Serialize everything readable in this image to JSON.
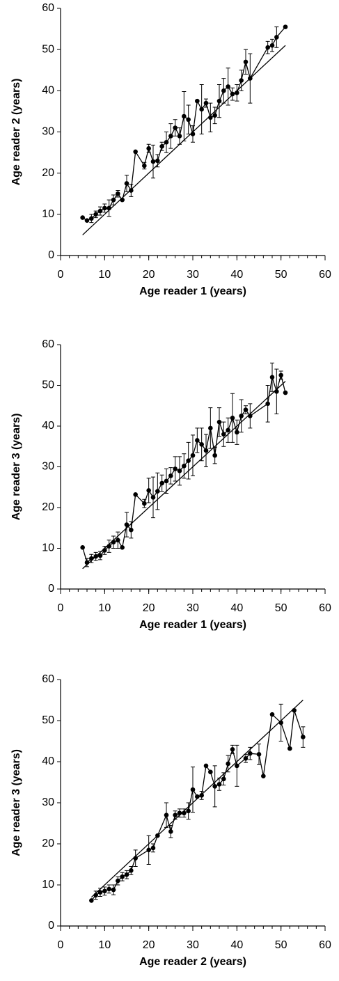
{
  "chart_data": [
    {
      "type": "line",
      "xlabel": "Age reader 1 (years)",
      "ylabel": "Age reader 2 (years)",
      "color": "#000000",
      "x": [
        5,
        6,
        7,
        8,
        9,
        10,
        11,
        12,
        13,
        14,
        15,
        16,
        17,
        19,
        20,
        21,
        22,
        23,
        24,
        25,
        26,
        27,
        28,
        29,
        30,
        31,
        32,
        33,
        34,
        35,
        36,
        37,
        38,
        39,
        40,
        41,
        42,
        43,
        47,
        48,
        49,
        51
      ],
      "values": [
        9.2,
        8.5,
        9,
        10,
        10.8,
        11.5,
        11.5,
        13.5,
        15,
        13.5,
        17.5,
        15.8,
        25.2,
        21.8,
        26,
        22.8,
        23,
        26.5,
        27.5,
        29,
        31,
        29,
        33.8,
        33,
        29.5,
        37.5,
        35.5,
        37,
        33.5,
        34,
        37.5,
        40,
        41,
        39.2,
        39.5,
        42.5,
        47,
        43,
        50.5,
        51,
        53,
        55.5
      ],
      "errors": [
        0,
        0,
        1,
        0.8,
        1,
        1,
        2,
        1.2,
        0.8,
        0,
        2,
        1.5,
        0,
        0.8,
        1,
        4,
        1.5,
        1,
        2.5,
        3,
        2,
        2,
        6,
        3.5,
        2,
        0,
        6,
        1,
        3.5,
        2,
        4,
        3,
        4.5,
        1.5,
        2,
        2.5,
        3,
        6,
        1.5,
        1.5,
        2.5,
        0
      ],
      "reference_line": {
        "x": [
          5,
          51
        ],
        "y": [
          5,
          51
        ]
      },
      "xlim": [
        0,
        60
      ],
      "xticks": [
        0,
        10,
        20,
        30,
        40,
        50,
        60
      ],
      "xminor_step": 2,
      "ylim": [
        0,
        60
      ],
      "yticks": [
        0,
        10,
        20,
        30,
        40,
        50,
        60
      ]
    },
    {
      "type": "line",
      "xlabel": "Age reader 1 (years)",
      "ylabel": "Age reader 3 (years)",
      "color": "#000000",
      "x": [
        5,
        6,
        7,
        8,
        9,
        10,
        11,
        12,
        13,
        14,
        15,
        16,
        17,
        19,
        20,
        21,
        22,
        23,
        24,
        25,
        26,
        27,
        28,
        29,
        30,
        31,
        32,
        33,
        34,
        35,
        36,
        37,
        38,
        39,
        40,
        41,
        42,
        43,
        47,
        48,
        49,
        50,
        51
      ],
      "values": [
        10.2,
        6.5,
        7.5,
        8,
        8.2,
        9.5,
        10.5,
        11.5,
        12,
        10.2,
        15.8,
        14.5,
        23.2,
        21,
        24.2,
        22.5,
        24,
        26,
        26.5,
        27.8,
        29.5,
        29,
        30.2,
        31.5,
        32.8,
        36.5,
        35.5,
        34,
        39.5,
        32.8,
        41,
        38,
        39,
        42,
        38.5,
        42.5,
        44,
        42.5,
        45.5,
        52,
        48.5,
        52.5,
        48.2
      ],
      "errors": [
        0,
        1,
        1,
        1,
        1,
        1,
        1.5,
        1.5,
        2,
        0,
        3,
        2,
        0,
        1,
        3,
        5,
        4.5,
        2,
        3,
        2,
        3,
        3.5,
        3,
        4.5,
        5,
        3,
        4,
        4,
        5,
        2,
        3.5,
        3,
        3,
        6,
        3,
        4,
        1,
        3,
        4.5,
        3.5,
        5.5,
        1,
        0
      ],
      "reference_line": {
        "x": [
          5,
          51
        ],
        "y": [
          5,
          51
        ]
      },
      "xlim": [
        0,
        60
      ],
      "xticks": [
        0,
        10,
        20,
        30,
        40,
        50,
        60
      ],
      "xminor_step": 2,
      "ylim": [
        0,
        60
      ],
      "yticks": [
        0,
        10,
        20,
        30,
        40,
        50,
        60
      ]
    },
    {
      "type": "line",
      "xlabel": "Age reader 2 (years)",
      "ylabel": "Age reader 3 (years)",
      "color": "#000000",
      "x": [
        7,
        8,
        9,
        10,
        11,
        12,
        13,
        14,
        15,
        16,
        17,
        20,
        21,
        22,
        24,
        25,
        26,
        27,
        28,
        29,
        30,
        31,
        32,
        33,
        34,
        35,
        36,
        37,
        38,
        39,
        40,
        42,
        43,
        45,
        46,
        48,
        50,
        52,
        53,
        55
      ],
      "values": [
        6.2,
        7.5,
        8.2,
        8.5,
        9,
        8.8,
        11,
        12,
        12.5,
        13.5,
        16.5,
        18.5,
        19,
        22,
        27,
        23,
        27,
        27.5,
        27.5,
        28,
        33.2,
        31.5,
        31.8,
        39,
        37.5,
        34,
        34.5,
        35.8,
        39.5,
        43,
        39,
        40.8,
        42,
        41.8,
        36.5,
        51.5,
        49.5,
        43.2,
        52.5,
        46
      ],
      "errors": [
        0,
        1,
        1,
        1,
        1,
        1.2,
        1,
        1,
        1,
        1,
        2,
        3.5,
        1,
        0,
        3,
        1.5,
        1,
        1,
        1,
        2,
        5.5,
        0,
        1,
        0,
        0,
        5,
        1.5,
        1.5,
        2,
        1,
        5,
        1,
        1.5,
        2.5,
        0,
        0,
        4.5,
        0,
        0,
        2.5
      ],
      "reference_line": {
        "x": [
          7,
          55
        ],
        "y": [
          7,
          55
        ]
      },
      "xlim": [
        0,
        60
      ],
      "xticks": [
        0,
        10,
        20,
        30,
        40,
        50,
        60
      ],
      "xminor_step": 2,
      "ylim": [
        0,
        60
      ],
      "yticks": [
        0,
        10,
        20,
        30,
        40,
        50,
        60
      ]
    }
  ]
}
